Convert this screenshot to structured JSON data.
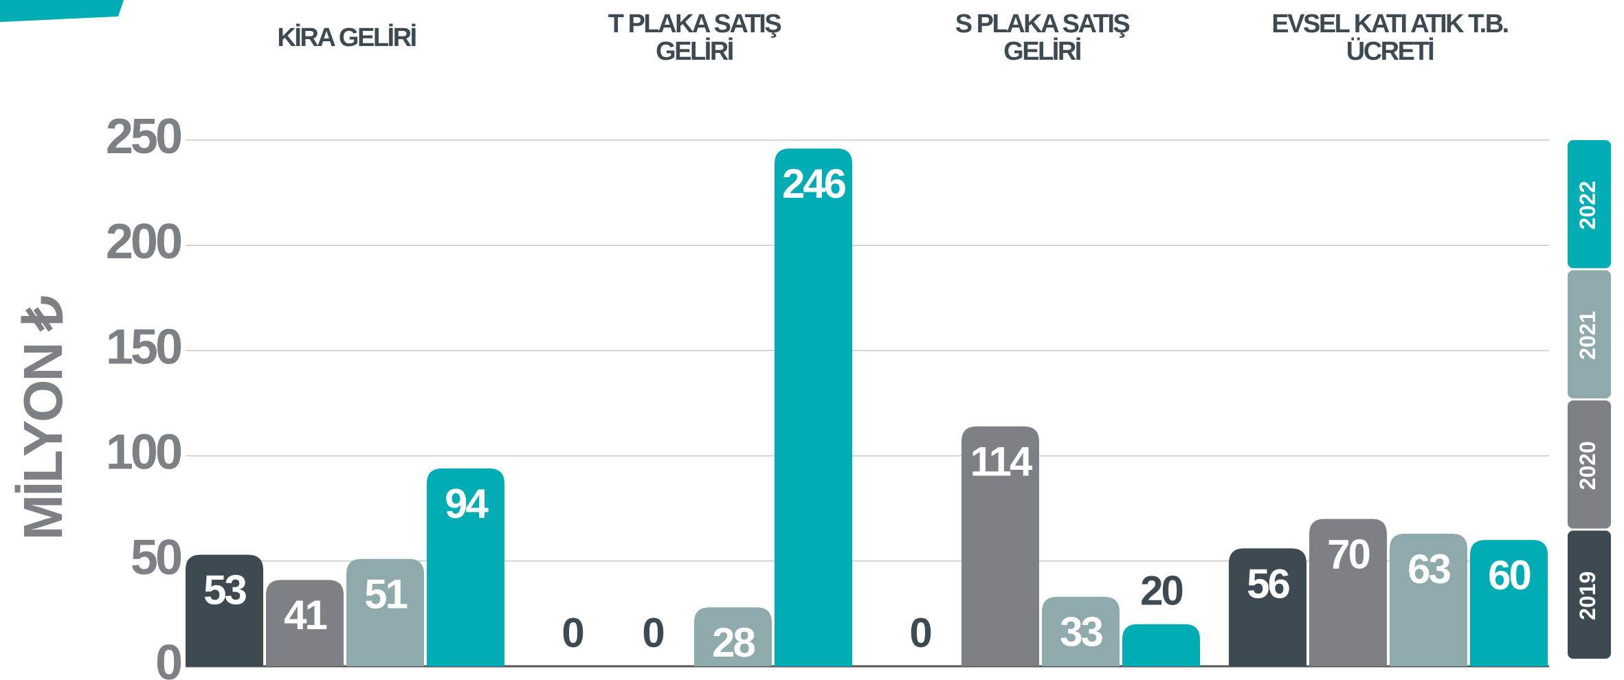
{
  "chart_data": {
    "type": "bar",
    "categories": [
      "KİRA GELİRİ",
      "T PLAKA SATIŞ\nGELİRİ",
      "S PLAKA SATIŞ\nGELİRİ",
      "EVSEL KATI ATIK T.B.\nÜCRETİ"
    ],
    "series": [
      {
        "name": "2019",
        "color": "#3d4a52",
        "values": [
          53,
          0,
          0,
          56
        ]
      },
      {
        "name": "2020",
        "color": "#7d8084",
        "values": [
          41,
          0,
          114,
          70
        ]
      },
      {
        "name": "2021",
        "color": "#8eaaac",
        "values": [
          51,
          28,
          33,
          63
        ]
      },
      {
        "name": "2022",
        "color": "#00adb5",
        "values": [
          94,
          246,
          20,
          60
        ]
      }
    ],
    "y_label": "MİLYON ₺",
    "ylim": [
      0,
      250
    ],
    "yticks": [
      0,
      50,
      100,
      150,
      200,
      250
    ],
    "grid": true,
    "legend": "right"
  }
}
